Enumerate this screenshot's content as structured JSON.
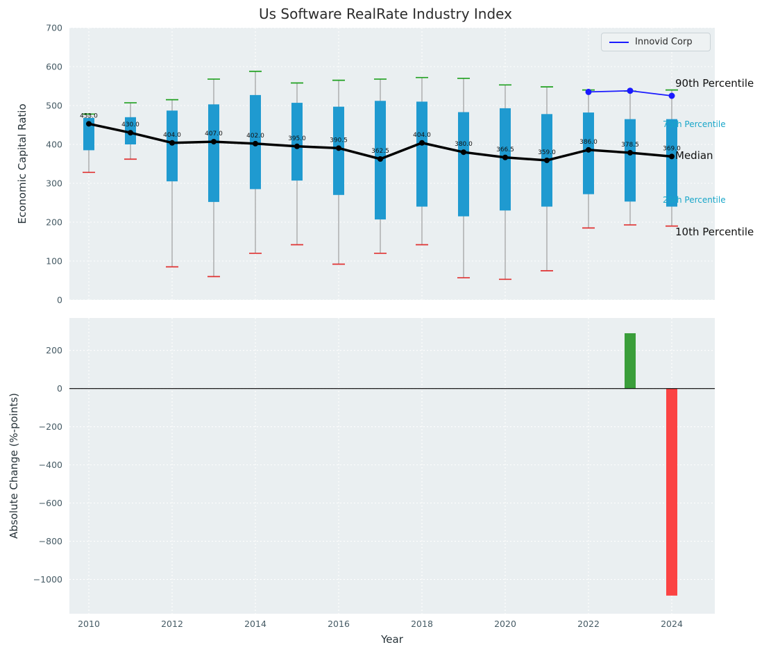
{
  "title": "Us Software RealRate Industry Index",
  "annotations": {
    "p90": "90th Percentile",
    "p75": "75th Percentile",
    "median": "Median",
    "p25": "25th Percentile",
    "p10": "10th Percentile"
  },
  "colors": {
    "box": "#1f9ad0",
    "median_line": "#000000",
    "whisker": "#9e9e9e",
    "cap_top": "#1fa01f",
    "cap_bottom": "#e03131",
    "plot_bg": "#eaeff1",
    "grid": "#ffffff",
    "tick": "#455a64",
    "median_label": "#111111",
    "annotation_percentile": "#18a6c9",
    "annotation_black": "#111111",
    "zero_line": "#000000"
  },
  "chart_data": [
    {
      "type": "boxplot+line",
      "title": "Us Software RealRate Industry Index",
      "ylabel": "Economic Capital Ratio",
      "ylim": [
        0,
        700
      ],
      "yticks": [
        0,
        100,
        200,
        300,
        400,
        500,
        600,
        700
      ],
      "xticks": [
        2010,
        2012,
        2014,
        2016,
        2018,
        2020,
        2022,
        2024
      ],
      "grid": true,
      "legend_position": "upper right",
      "years": [
        2010,
        2011,
        2012,
        2013,
        2014,
        2015,
        2016,
        2017,
        2018,
        2019,
        2020,
        2021,
        2022,
        2023,
        2024
      ],
      "median": [
        453.0,
        430.0,
        404.0,
        407.0,
        402.0,
        395.0,
        390.5,
        362.5,
        404.0,
        380.0,
        366.5,
        359.0,
        386.0,
        378.5,
        369.0
      ],
      "median_labels": [
        "453.0",
        "430.0",
        "404.0",
        "407.0",
        "402.0",
        "395.0",
        "390.5",
        "362.5",
        "404.0",
        "380.0",
        "366.5",
        "359.0",
        "386.0",
        "378.5",
        "369.0"
      ],
      "p75": [
        468,
        470,
        487,
        503,
        527,
        507,
        497,
        512,
        510,
        483,
        493,
        478,
        482,
        465,
        465
      ],
      "p25": [
        385,
        400,
        305,
        252,
        285,
        307,
        270,
        207,
        240,
        215,
        230,
        240,
        272,
        253,
        240
      ],
      "p90": [
        478,
        507,
        515,
        568,
        588,
        558,
        565,
        568,
        572,
        570,
        553,
        548,
        540,
        537,
        540
      ],
      "p10": [
        328,
        362,
        85,
        60,
        120,
        142,
        92,
        120,
        142,
        57,
        53,
        75,
        185,
        193,
        190
      ],
      "series": [
        {
          "name": "Innovid Corp",
          "color": "#1a1aff",
          "years": [
            2022,
            2023,
            2024
          ],
          "values": [
            535,
            538,
            525
          ]
        }
      ]
    },
    {
      "type": "bar",
      "ylabel": "Absolute Change (%-points)",
      "xlabel": "Year",
      "ylim": [
        -1180,
        370
      ],
      "yticks": [
        200,
        0,
        -200,
        -400,
        -600,
        -800,
        -1000
      ],
      "xticks": [
        2010,
        2012,
        2014,
        2016,
        2018,
        2020,
        2022,
        2024
      ],
      "grid": true,
      "bars": [
        {
          "year": 2023,
          "value": 290,
          "color": "#3a9e3a"
        },
        {
          "year": 2024,
          "value": -1085,
          "color": "#fb4343"
        }
      ]
    }
  ]
}
